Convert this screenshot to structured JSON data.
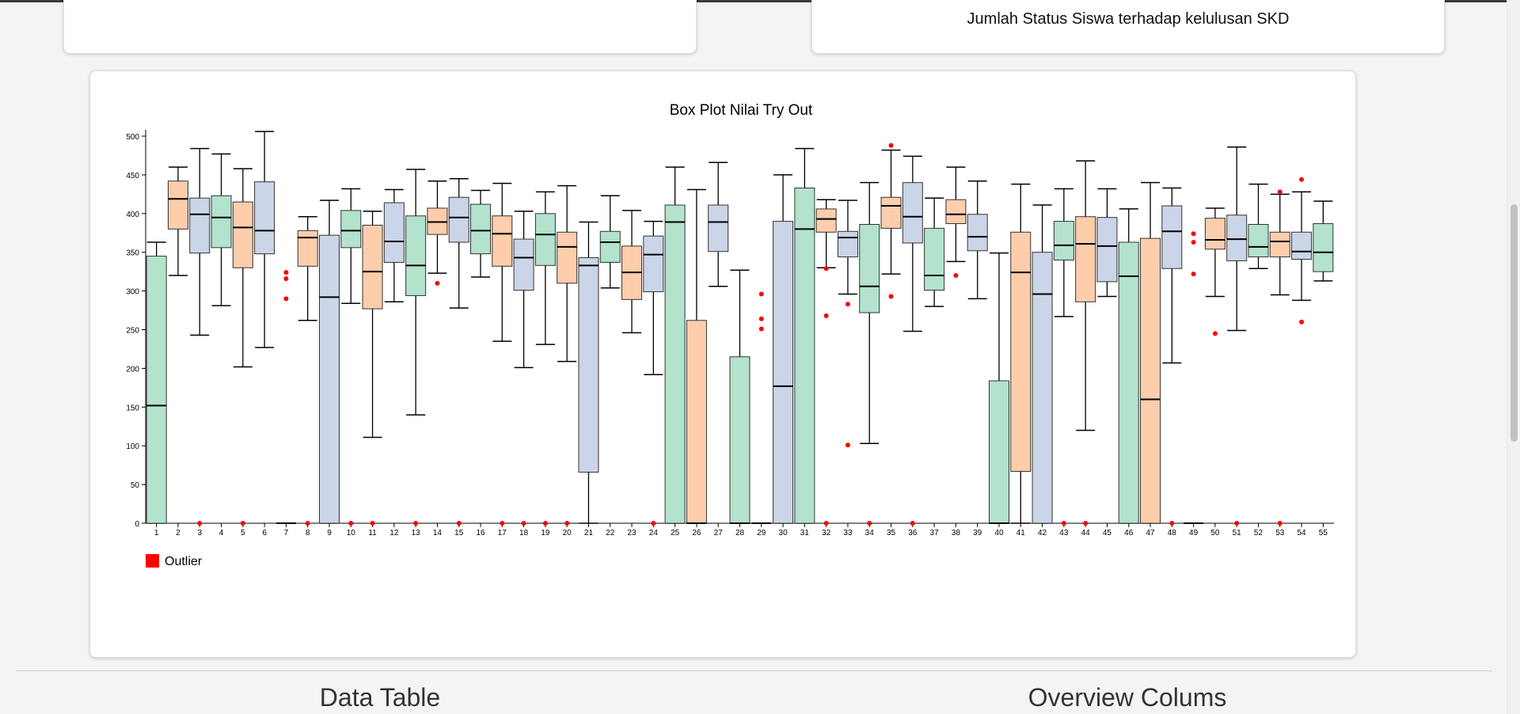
{
  "top_right_card": {
    "title": "Jumlah Status Siswa terhadap kelulusan SKD"
  },
  "sections": {
    "data_table": "Data Table",
    "overview": "Overview Colums"
  },
  "chart_data": {
    "type": "boxplot",
    "title": "Box Plot Nilai Try Out",
    "ylim": [
      0,
      500
    ],
    "yticks": [
      0,
      50,
      100,
      150,
      200,
      250,
      300,
      350,
      400,
      450,
      500
    ],
    "legend": {
      "label": "Outlier",
      "color": "#ff0000",
      "position": "bottom-left"
    },
    "series_colors": [
      "#b3e2cd",
      "#fdcdac",
      "#cbd5e8"
    ],
    "boxes": [
      {
        "label": "1",
        "min": 0,
        "q1": 0,
        "median": 152,
        "q3": 345,
        "max": 363,
        "outliers": []
      },
      {
        "label": "2",
        "min": 320,
        "q1": 380,
        "median": 419,
        "q3": 442,
        "max": 460,
        "outliers": []
      },
      {
        "label": "3",
        "min": 243,
        "q1": 349,
        "median": 399,
        "q3": 420,
        "max": 484,
        "outliers": [
          0
        ]
      },
      {
        "label": "4",
        "min": 281,
        "q1": 356,
        "median": 395,
        "q3": 423,
        "max": 477,
        "outliers": []
      },
      {
        "label": "5",
        "min": 202,
        "q1": 330,
        "median": 382,
        "q3": 415,
        "max": 458,
        "outliers": [
          0
        ]
      },
      {
        "label": "6",
        "min": 227,
        "q1": 348,
        "median": 378,
        "q3": 441,
        "max": 506,
        "outliers": []
      },
      {
        "label": "7",
        "min": 0,
        "q1": 0,
        "median": 0,
        "q3": 0,
        "max": 0,
        "outliers": [
          324,
          316,
          290
        ]
      },
      {
        "label": "8",
        "min": 262,
        "q1": 332,
        "median": 369,
        "q3": 378,
        "max": 396,
        "outliers": [
          0
        ]
      },
      {
        "label": "9",
        "min": 0,
        "q1": 0,
        "median": 292,
        "q3": 372,
        "max": 417,
        "outliers": []
      },
      {
        "label": "10",
        "min": 284,
        "q1": 356,
        "median": 378,
        "q3": 404,
        "max": 432,
        "outliers": [
          0
        ]
      },
      {
        "label": "11",
        "min": 111,
        "q1": 277,
        "median": 325,
        "q3": 385,
        "max": 403,
        "outliers": [
          0
        ]
      },
      {
        "label": "12",
        "min": 286,
        "q1": 337,
        "median": 364,
        "q3": 414,
        "max": 431,
        "outliers": []
      },
      {
        "label": "13",
        "min": 140,
        "q1": 294,
        "median": 333,
        "q3": 397,
        "max": 457,
        "outliers": [
          0
        ]
      },
      {
        "label": "14",
        "min": 323,
        "q1": 373,
        "median": 389,
        "q3": 407,
        "max": 442,
        "outliers": [
          310
        ]
      },
      {
        "label": "15",
        "min": 278,
        "q1": 363,
        "median": 395,
        "q3": 421,
        "max": 445,
        "outliers": [
          0
        ]
      },
      {
        "label": "16",
        "min": 318,
        "q1": 348,
        "median": 378,
        "q3": 412,
        "max": 430,
        "outliers": []
      },
      {
        "label": "17",
        "min": 235,
        "q1": 332,
        "median": 374,
        "q3": 397,
        "max": 439,
        "outliers": [
          0
        ]
      },
      {
        "label": "18",
        "min": 201,
        "q1": 301,
        "median": 343,
        "q3": 367,
        "max": 403,
        "outliers": [
          0
        ]
      },
      {
        "label": "19",
        "min": 231,
        "q1": 333,
        "median": 373,
        "q3": 400,
        "max": 428,
        "outliers": [
          0
        ]
      },
      {
        "label": "20",
        "min": 209,
        "q1": 310,
        "median": 357,
        "q3": 376,
        "max": 436,
        "outliers": [
          0
        ]
      },
      {
        "label": "21",
        "min": 0,
        "q1": 66,
        "median": 333,
        "q3": 343,
        "max": 389,
        "outliers": []
      },
      {
        "label": "22",
        "min": 304,
        "q1": 337,
        "median": 363,
        "q3": 377,
        "max": 423,
        "outliers": []
      },
      {
        "label": "23",
        "min": 246,
        "q1": 289,
        "median": 324,
        "q3": 358,
        "max": 404,
        "outliers": []
      },
      {
        "label": "24",
        "min": 192,
        "q1": 299,
        "median": 347,
        "q3": 371,
        "max": 390,
        "outliers": [
          0
        ]
      },
      {
        "label": "25",
        "min": 0,
        "q1": 0,
        "median": 389,
        "q3": 411,
        "max": 460,
        "outliers": []
      },
      {
        "label": "26",
        "min": 0,
        "q1": 0,
        "median": 0,
        "q3": 262,
        "max": 431,
        "outliers": []
      },
      {
        "label": "27",
        "min": 306,
        "q1": 351,
        "median": 389,
        "q3": 411,
        "max": 466,
        "outliers": []
      },
      {
        "label": "28",
        "min": 0,
        "q1": 0,
        "median": 0,
        "q3": 215,
        "max": 327,
        "outliers": []
      },
      {
        "label": "29",
        "min": 0,
        "q1": 0,
        "median": 0,
        "q3": 0,
        "max": 0,
        "outliers": [
          296,
          264,
          251
        ]
      },
      {
        "label": "30",
        "min": 0,
        "q1": 0,
        "median": 177,
        "q3": 390,
        "max": 450,
        "outliers": []
      },
      {
        "label": "31",
        "min": 0,
        "q1": 0,
        "median": 380,
        "q3": 433,
        "max": 484,
        "outliers": []
      },
      {
        "label": "32",
        "min": 330,
        "q1": 376,
        "median": 393,
        "q3": 406,
        "max": 418,
        "outliers": [
          329,
          268,
          0
        ]
      },
      {
        "label": "33",
        "min": 296,
        "q1": 344,
        "median": 369,
        "q3": 377,
        "max": 417,
        "outliers": [
          283,
          101
        ]
      },
      {
        "label": "34",
        "min": 103,
        "q1": 272,
        "median": 306,
        "q3": 386,
        "max": 440,
        "outliers": [
          0
        ]
      },
      {
        "label": "35",
        "min": 322,
        "q1": 381,
        "median": 410,
        "q3": 421,
        "max": 482,
        "outliers": [
          488,
          293
        ]
      },
      {
        "label": "36",
        "min": 248,
        "q1": 362,
        "median": 396,
        "q3": 440,
        "max": 474,
        "outliers": [
          0
        ]
      },
      {
        "label": "37",
        "min": 280,
        "q1": 301,
        "median": 320,
        "q3": 381,
        "max": 420,
        "outliers": []
      },
      {
        "label": "38",
        "min": 338,
        "q1": 387,
        "median": 399,
        "q3": 418,
        "max": 460,
        "outliers": [
          320
        ]
      },
      {
        "label": "39",
        "min": 290,
        "q1": 352,
        "median": 370,
        "q3": 399,
        "max": 442,
        "outliers": []
      },
      {
        "label": "40",
        "min": 0,
        "q1": 0,
        "median": 0,
        "q3": 184,
        "max": 349,
        "outliers": []
      },
      {
        "label": "41",
        "min": 0,
        "q1": 67,
        "median": 324,
        "q3": 376,
        "max": 438,
        "outliers": []
      },
      {
        "label": "42",
        "min": 0,
        "q1": 0,
        "median": 296,
        "q3": 350,
        "max": 411,
        "outliers": []
      },
      {
        "label": "43",
        "min": 267,
        "q1": 340,
        "median": 359,
        "q3": 390,
        "max": 432,
        "outliers": [
          0
        ]
      },
      {
        "label": "44",
        "min": 120,
        "q1": 286,
        "median": 361,
        "q3": 396,
        "max": 468,
        "outliers": [
          0
        ]
      },
      {
        "label": "45",
        "min": 293,
        "q1": 312,
        "median": 358,
        "q3": 395,
        "max": 432,
        "outliers": []
      },
      {
        "label": "46",
        "min": 0,
        "q1": 0,
        "median": 319,
        "q3": 363,
        "max": 406,
        "outliers": []
      },
      {
        "label": "47",
        "min": 0,
        "q1": 0,
        "median": 160,
        "q3": 368,
        "max": 440,
        "outliers": []
      },
      {
        "label": "48",
        "min": 207,
        "q1": 329,
        "median": 377,
        "q3": 410,
        "max": 433,
        "outliers": [
          0
        ]
      },
      {
        "label": "49",
        "min": 0,
        "q1": 0,
        "median": 0,
        "q3": 0,
        "max": 0,
        "outliers": [
          374,
          363,
          322
        ]
      },
      {
        "label": "50",
        "min": 293,
        "q1": 354,
        "median": 366,
        "q3": 394,
        "max": 407,
        "outliers": [
          245
        ]
      },
      {
        "label": "51",
        "min": 249,
        "q1": 339,
        "median": 367,
        "q3": 398,
        "max": 486,
        "outliers": [
          0
        ]
      },
      {
        "label": "52",
        "min": 329,
        "q1": 344,
        "median": 357,
        "q3": 386,
        "max": 438,
        "outliers": []
      },
      {
        "label": "53",
        "min": 295,
        "q1": 344,
        "median": 364,
        "q3": 376,
        "max": 425,
        "outliers": [
          428,
          0
        ]
      },
      {
        "label": "54",
        "min": 288,
        "q1": 341,
        "median": 351,
        "q3": 376,
        "max": 428,
        "outliers": [
          444,
          260
        ]
      },
      {
        "label": "55",
        "min": 313,
        "q1": 325,
        "median": 350,
        "q3": 387,
        "max": 416,
        "outliers": []
      }
    ]
  }
}
